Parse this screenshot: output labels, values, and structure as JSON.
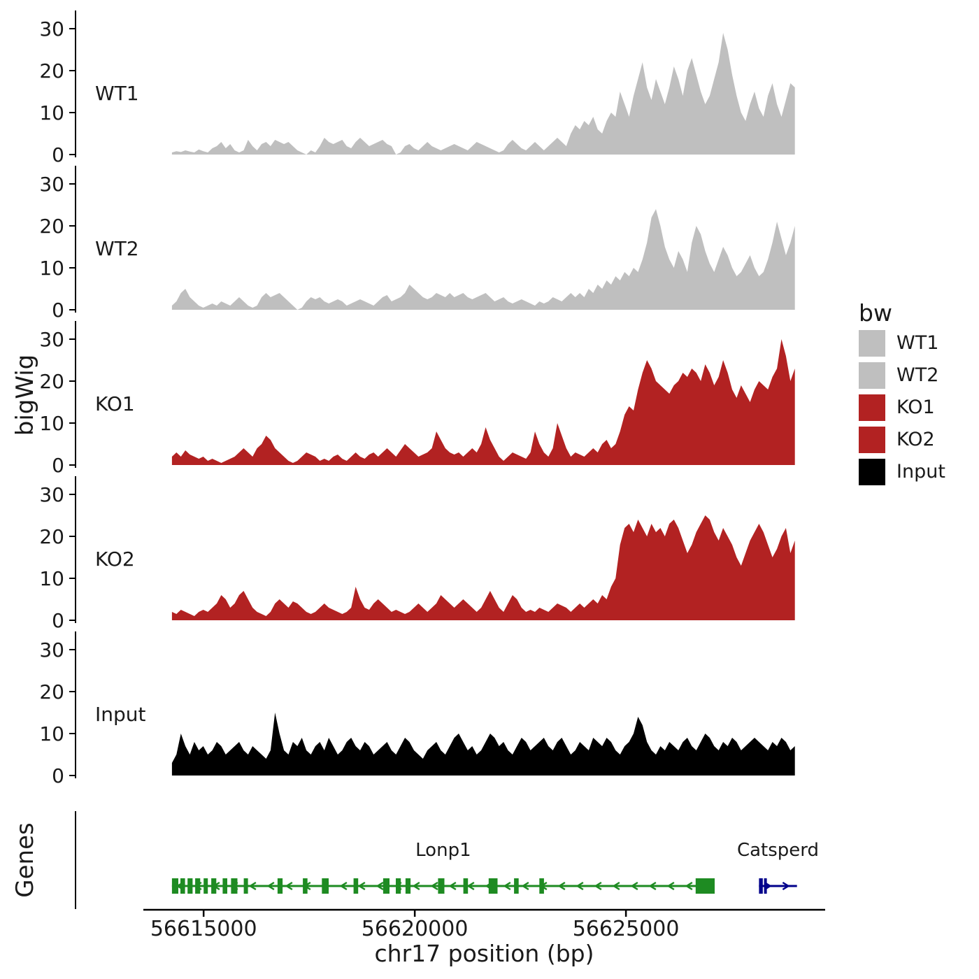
{
  "labels": {
    "y_coverage": "bigWig",
    "y_genes": "Genes",
    "x_title": "chr17 position (bp)"
  },
  "legend": {
    "title": "bw",
    "entries": [
      {
        "label": "WT1",
        "color": "#bfbfbf"
      },
      {
        "label": "WT2",
        "color": "#bfbfbf"
      },
      {
        "label": "KO1",
        "color": "#b22222"
      },
      {
        "label": "KO2",
        "color": "#b22222"
      },
      {
        "label": "Input",
        "color": "#000000"
      }
    ]
  },
  "chart_data": {
    "type": "area",
    "title": "",
    "xlabel": "chr17 position (bp)",
    "ylabel": "bigWig",
    "x_range_bp": [
      56612000,
      56629800
    ],
    "x_ticks": [
      56615000,
      56620000,
      56625000
    ],
    "x_tick_labels": [
      "56615000",
      "56620000",
      "56625000"
    ],
    "ylim": [
      0,
      32
    ],
    "y_ticks": [
      0,
      10,
      20,
      30
    ],
    "data_start_bp": 56614250,
    "data_end_bp": 56629000,
    "grid": "off",
    "legend_position": "right",
    "tracks": [
      {
        "name": "WT1",
        "color": "#bfbfbf",
        "values": [
          0.5,
          0.8,
          0.6,
          1,
          0.7,
          0.5,
          1.2,
          0.8,
          0.5,
          1.5,
          2,
          3,
          1.5,
          2.5,
          1,
          0.5,
          1,
          3.5,
          2,
          1,
          2.5,
          3,
          2,
          3.5,
          3,
          2.5,
          3,
          2,
          1,
          0.5,
          0,
          1,
          0.5,
          2,
          4,
          3,
          2.5,
          3,
          3.5,
          2,
          1.5,
          3,
          4,
          3,
          2,
          2.5,
          3,
          3.5,
          2.5,
          2,
          0,
          0.5,
          2,
          2.5,
          1.5,
          1,
          2,
          3,
          2,
          1.5,
          1,
          1.5,
          2,
          2.5,
          2,
          1.5,
          1,
          2,
          3,
          2.5,
          2,
          1.5,
          1,
          0.5,
          1,
          2.5,
          3.5,
          2.5,
          1.5,
          1,
          2,
          3,
          2,
          1,
          2,
          3,
          4,
          3,
          2,
          5,
          7,
          6,
          8,
          7,
          9,
          6,
          5,
          8,
          10,
          9,
          15,
          12,
          9,
          14,
          18,
          22,
          16,
          13,
          18,
          15,
          12,
          16,
          21,
          18,
          14,
          20,
          23,
          19,
          15,
          12,
          14,
          18,
          22,
          29,
          25,
          19,
          14,
          10,
          8,
          12,
          15,
          11,
          9,
          14,
          17,
          12,
          9,
          13,
          17,
          16
        ]
      },
      {
        "name": "WT2",
        "color": "#bfbfbf",
        "values": [
          1,
          2,
          4,
          5,
          3,
          2,
          1,
          0.5,
          1,
          1.5,
          1,
          2,
          1.5,
          1,
          2,
          3,
          2,
          1,
          0.5,
          1,
          3,
          4,
          3,
          3.5,
          4,
          3,
          2,
          1,
          0,
          0.5,
          2,
          3,
          2.5,
          3,
          2,
          1.5,
          2,
          2.5,
          2,
          1,
          1.5,
          2,
          2.5,
          2,
          1.5,
          1,
          2,
          3,
          3.5,
          2,
          2.5,
          3,
          4,
          6,
          5,
          4,
          3,
          2.5,
          3,
          4,
          3.5,
          3,
          4,
          3,
          3.5,
          4,
          3,
          2.5,
          3,
          3.5,
          4,
          3,
          2,
          2.5,
          3,
          2,
          1.5,
          2,
          2.5,
          2,
          1.5,
          1,
          2,
          1.5,
          2,
          3,
          2.5,
          2,
          3,
          4,
          3,
          4,
          3,
          5,
          4,
          6,
          5,
          7,
          6,
          8,
          7,
          9,
          8,
          10,
          9,
          12,
          16,
          22,
          24,
          20,
          15,
          12,
          10,
          14,
          12,
          9,
          16,
          20,
          18,
          14,
          11,
          9,
          12,
          15,
          13,
          10,
          8,
          9,
          11,
          13,
          10,
          8,
          9,
          12,
          16,
          21,
          17,
          13,
          16,
          20
        ]
      },
      {
        "name": "KO1",
        "color": "#b22222",
        "values": [
          2,
          3,
          2,
          3.5,
          2.5,
          2,
          1.5,
          2,
          1,
          1.5,
          1,
          0.5,
          1,
          1.5,
          2,
          3,
          4,
          3,
          2,
          4,
          5,
          7,
          6,
          4,
          3,
          2,
          1,
          0.5,
          1,
          2,
          3,
          2.5,
          2,
          1,
          1.5,
          1,
          2,
          2.5,
          1.5,
          1,
          2,
          3,
          2,
          1.5,
          2.5,
          3,
          2,
          3,
          4,
          3,
          2,
          3.5,
          5,
          4,
          3,
          2,
          2.5,
          3,
          4,
          8,
          6,
          4,
          3,
          2.5,
          3,
          2,
          3,
          4,
          3,
          5,
          9,
          6,
          4,
          2,
          1,
          2,
          3,
          2.5,
          2,
          1.5,
          3,
          8,
          5,
          3,
          2,
          4,
          10,
          7,
          4,
          2,
          3,
          2.5,
          2,
          3,
          4,
          3,
          5,
          6,
          4,
          5,
          8,
          12,
          14,
          13,
          18,
          22,
          25,
          23,
          20,
          19,
          18,
          17,
          19,
          20,
          22,
          21,
          23,
          22,
          20,
          24,
          22,
          19,
          21,
          25,
          22,
          18,
          16,
          19,
          17,
          15,
          18,
          20,
          19,
          18,
          21,
          23,
          30,
          26,
          20,
          23
        ]
      },
      {
        "name": "KO2",
        "color": "#b22222",
        "values": [
          2,
          1.5,
          2.5,
          2,
          1.5,
          1,
          2,
          2.5,
          2,
          3,
          4,
          6,
          5,
          3,
          4,
          6,
          7,
          5,
          3,
          2,
          1.5,
          1,
          2,
          4,
          5,
          4,
          3,
          4.5,
          4,
          3,
          2,
          1.5,
          2,
          3,
          4,
          3,
          2.5,
          2,
          1.5,
          2,
          3,
          8,
          5,
          3,
          2.5,
          4,
          5,
          4,
          3,
          2,
          2.5,
          2,
          1.5,
          2,
          3,
          4,
          3,
          2,
          3,
          4,
          6,
          5,
          4,
          3,
          4,
          5,
          4,
          3,
          2,
          3,
          5,
          7,
          5,
          3,
          2,
          4,
          6,
          5,
          3,
          2,
          2.5,
          2,
          3,
          2.5,
          2,
          3,
          4,
          3.5,
          3,
          2,
          3,
          4,
          3,
          4,
          5,
          4,
          6,
          5,
          8,
          10,
          18,
          22,
          23,
          21,
          24,
          22,
          20,
          23,
          21,
          22,
          20,
          23,
          24,
          22,
          19,
          16,
          18,
          21,
          23,
          25,
          24,
          21,
          19,
          22,
          20,
          18,
          15,
          13,
          16,
          19,
          21,
          23,
          21,
          18,
          15,
          17,
          20,
          22,
          16,
          19
        ]
      },
      {
        "name": "Input",
        "color": "#000000",
        "values": [
          3,
          5,
          10,
          7,
          5,
          8,
          6,
          7,
          5,
          6,
          8,
          7,
          5,
          6,
          7,
          8,
          6,
          5,
          7,
          6,
          5,
          4,
          6,
          15,
          10,
          6,
          5,
          8,
          7,
          9,
          6,
          5,
          7,
          8,
          6,
          9,
          7,
          5,
          6,
          8,
          9,
          7,
          6,
          8,
          7,
          5,
          6,
          7,
          8,
          6,
          5,
          7,
          9,
          8,
          6,
          5,
          4,
          6,
          7,
          8,
          6,
          5,
          7,
          9,
          10,
          8,
          6,
          7,
          5,
          6,
          8,
          10,
          9,
          7,
          8,
          6,
          5,
          7,
          9,
          8,
          6,
          7,
          8,
          9,
          7,
          6,
          8,
          9,
          7,
          5,
          6,
          8,
          7,
          6,
          9,
          8,
          7,
          9,
          8,
          6,
          5,
          7,
          8,
          10,
          14,
          12,
          8,
          6,
          5,
          7,
          6,
          8,
          7,
          6,
          8,
          9,
          7,
          6,
          8,
          10,
          9,
          7,
          6,
          8,
          7,
          9,
          8,
          6,
          7,
          8,
          9,
          8,
          7,
          6,
          8,
          7,
          9,
          8,
          6,
          7
        ]
      }
    ],
    "genes": [
      {
        "name": "Lonp1",
        "color": "#1e8b22",
        "strand": "-",
        "start": 56614250,
        "end": 56627100,
        "exons": [
          [
            56614250,
            56614400
          ],
          [
            56614450,
            56614560
          ],
          [
            56614620,
            56614740
          ],
          [
            56614800,
            56614920
          ],
          [
            56615000,
            56615100
          ],
          [
            56615180,
            56615300
          ],
          [
            56615450,
            56615560
          ],
          [
            56615650,
            56615800
          ],
          [
            56615950,
            56616050
          ],
          [
            56616750,
            56616870
          ],
          [
            56617350,
            56617460
          ],
          [
            56617800,
            56617960
          ],
          [
            56618550,
            56618660
          ],
          [
            56619250,
            56619400
          ],
          [
            56619550,
            56619670
          ],
          [
            56619780,
            56619900
          ],
          [
            56620550,
            56620700
          ],
          [
            56621150,
            56621260
          ],
          [
            56621750,
            56621960
          ],
          [
            56622350,
            56622460
          ],
          [
            56622950,
            56623060
          ],
          [
            56626650,
            56627100
          ]
        ]
      },
      {
        "name": "Catsperd",
        "color": "#00008b",
        "strand": "+",
        "start": 56628150,
        "end": 56629050,
        "exons": [
          [
            56628150,
            56628240
          ],
          [
            56628270,
            56628320
          ]
        ]
      }
    ]
  }
}
